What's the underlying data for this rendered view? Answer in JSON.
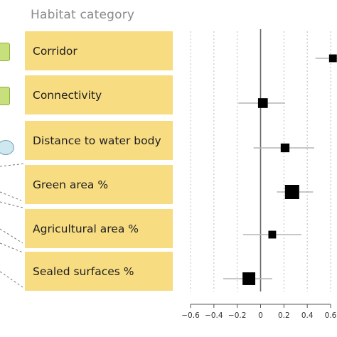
{
  "header": {
    "title": "Habitat category"
  },
  "categories": [
    {
      "label": "Corridor"
    },
    {
      "label": "Connectivity"
    },
    {
      "label": "Distance to water body"
    },
    {
      "label": "Green area %"
    },
    {
      "label": "Agricultural area %"
    },
    {
      "label": "Sealed surfaces %"
    }
  ],
  "chart_data": {
    "type": "scatter",
    "subtype": "forest-plot",
    "title": "",
    "xlabel": "",
    "ylabel": "",
    "xlim": [
      -0.6,
      0.6
    ],
    "xticks": [
      -0.6,
      -0.4,
      -0.2,
      0,
      0.2,
      0.4,
      0.6
    ],
    "xtick_labels": [
      "−0.6",
      "−0.4",
      "−0.2",
      "0",
      "0.2",
      "0.4",
      "0.6"
    ],
    "reference_line": 0,
    "grid": "vertical dashed",
    "categories": [
      "Corridor",
      "Connectivity",
      "Distance to water body",
      "Green area %",
      "Agricultural area %",
      "Sealed surfaces %"
    ],
    "estimates": [
      0.62,
      0.02,
      0.21,
      0.27,
      0.1,
      -0.1
    ],
    "ci_low": [
      0.47,
      -0.19,
      -0.06,
      0.14,
      -0.15,
      -0.32
    ],
    "ci_high": [
      0.7,
      0.21,
      0.46,
      0.45,
      0.35,
      0.1
    ],
    "weights": [
      0.35,
      0.55,
      0.45,
      1.0,
      0.35,
      0.85
    ],
    "colors": {
      "marker": "#000000",
      "ci": "#b5b5b5",
      "zero_line": "#666666",
      "grid": "#bcbcbc",
      "axis": "#555555"
    }
  }
}
